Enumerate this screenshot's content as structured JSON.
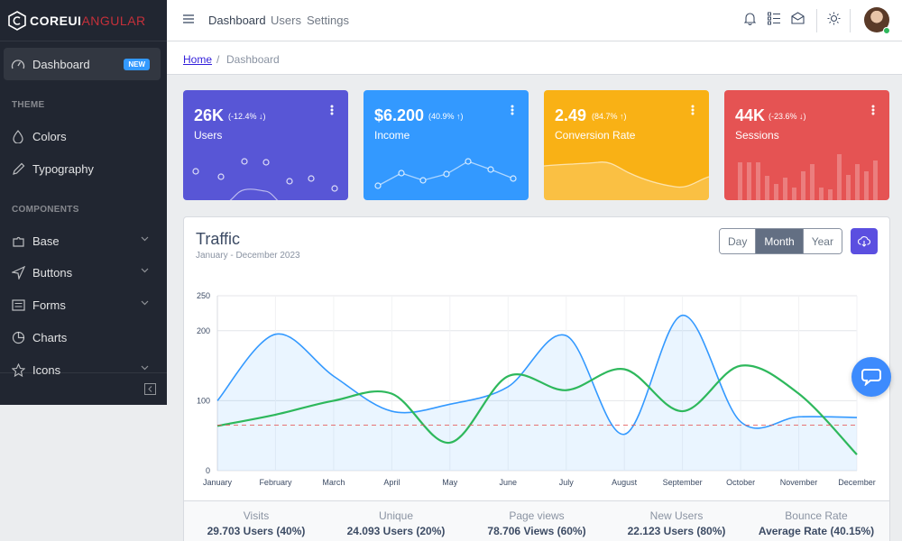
{
  "brand": {
    "core": "COREUI",
    "suffix": "ANGULAR"
  },
  "sidebar": {
    "dashboard": {
      "label": "Dashboard",
      "badge": "NEW"
    },
    "theme_title": "THEME",
    "colors": "Colors",
    "typography": "Typography",
    "components_title": "COMPONENTS",
    "base": "Base",
    "buttons": "Buttons",
    "forms": "Forms",
    "charts": "Charts",
    "icons": "Icons"
  },
  "header": {
    "nav": [
      "Dashboard",
      "Users",
      "Settings"
    ]
  },
  "breadcrumb": {
    "home": "Home",
    "separator": "/",
    "current": "Dashboard"
  },
  "widgets": [
    {
      "value": "26K",
      "change": "(-12.4% ↓)",
      "label": "Users",
      "color": "#5856d6"
    },
    {
      "value": "$6.200",
      "change": "(40.9% ↑)",
      "label": "Income",
      "color": "#3399ff"
    },
    {
      "value": "2.49",
      "change": "(84.7% ↑)",
      "label": "Conversion Rate",
      "color": "#f9b115"
    },
    {
      "value": "44K",
      "change": "(-23.6% ↓)",
      "label": "Sessions",
      "color": "#e55353"
    }
  ],
  "traffic": {
    "title": "Traffic",
    "subtitle": "January - December 2023",
    "ranges": [
      "Day",
      "Month",
      "Year"
    ],
    "active_range": "Month"
  },
  "chart_data": {
    "type": "line",
    "x": [
      "January",
      "February",
      "March",
      "April",
      "May",
      "June",
      "July",
      "August",
      "September",
      "October",
      "November",
      "December"
    ],
    "ylim": [
      0,
      250
    ],
    "yticks": [
      0,
      100,
      200,
      250
    ],
    "grid": true,
    "series": [
      {
        "values": [
          100,
          195,
          135,
          85,
          95,
          120,
          193,
          52,
          222,
          70,
          77,
          76
        ],
        "color": "#3399ff",
        "fill": true
      },
      {
        "values": [
          64,
          80,
          100,
          110,
          40,
          135,
          115,
          145,
          85,
          150,
          110,
          23
        ],
        "color": "#2eb85c"
      },
      {
        "values": [
          65,
          65,
          65,
          65,
          65,
          65,
          65,
          65,
          65,
          65,
          65,
          65
        ],
        "color": "#e55353",
        "dashed": true
      }
    ]
  },
  "stats": [
    {
      "label": "Visits",
      "value": "29.703 Users (40%)"
    },
    {
      "label": "Unique",
      "value": "24.093 Users (20%)"
    },
    {
      "label": "Page views",
      "value": "78.706 Views (60%)"
    },
    {
      "label": "New Users",
      "value": "22.123 Users (80%)"
    },
    {
      "label": "Bounce Rate",
      "value": "Average Rate (40.15%)"
    }
  ]
}
